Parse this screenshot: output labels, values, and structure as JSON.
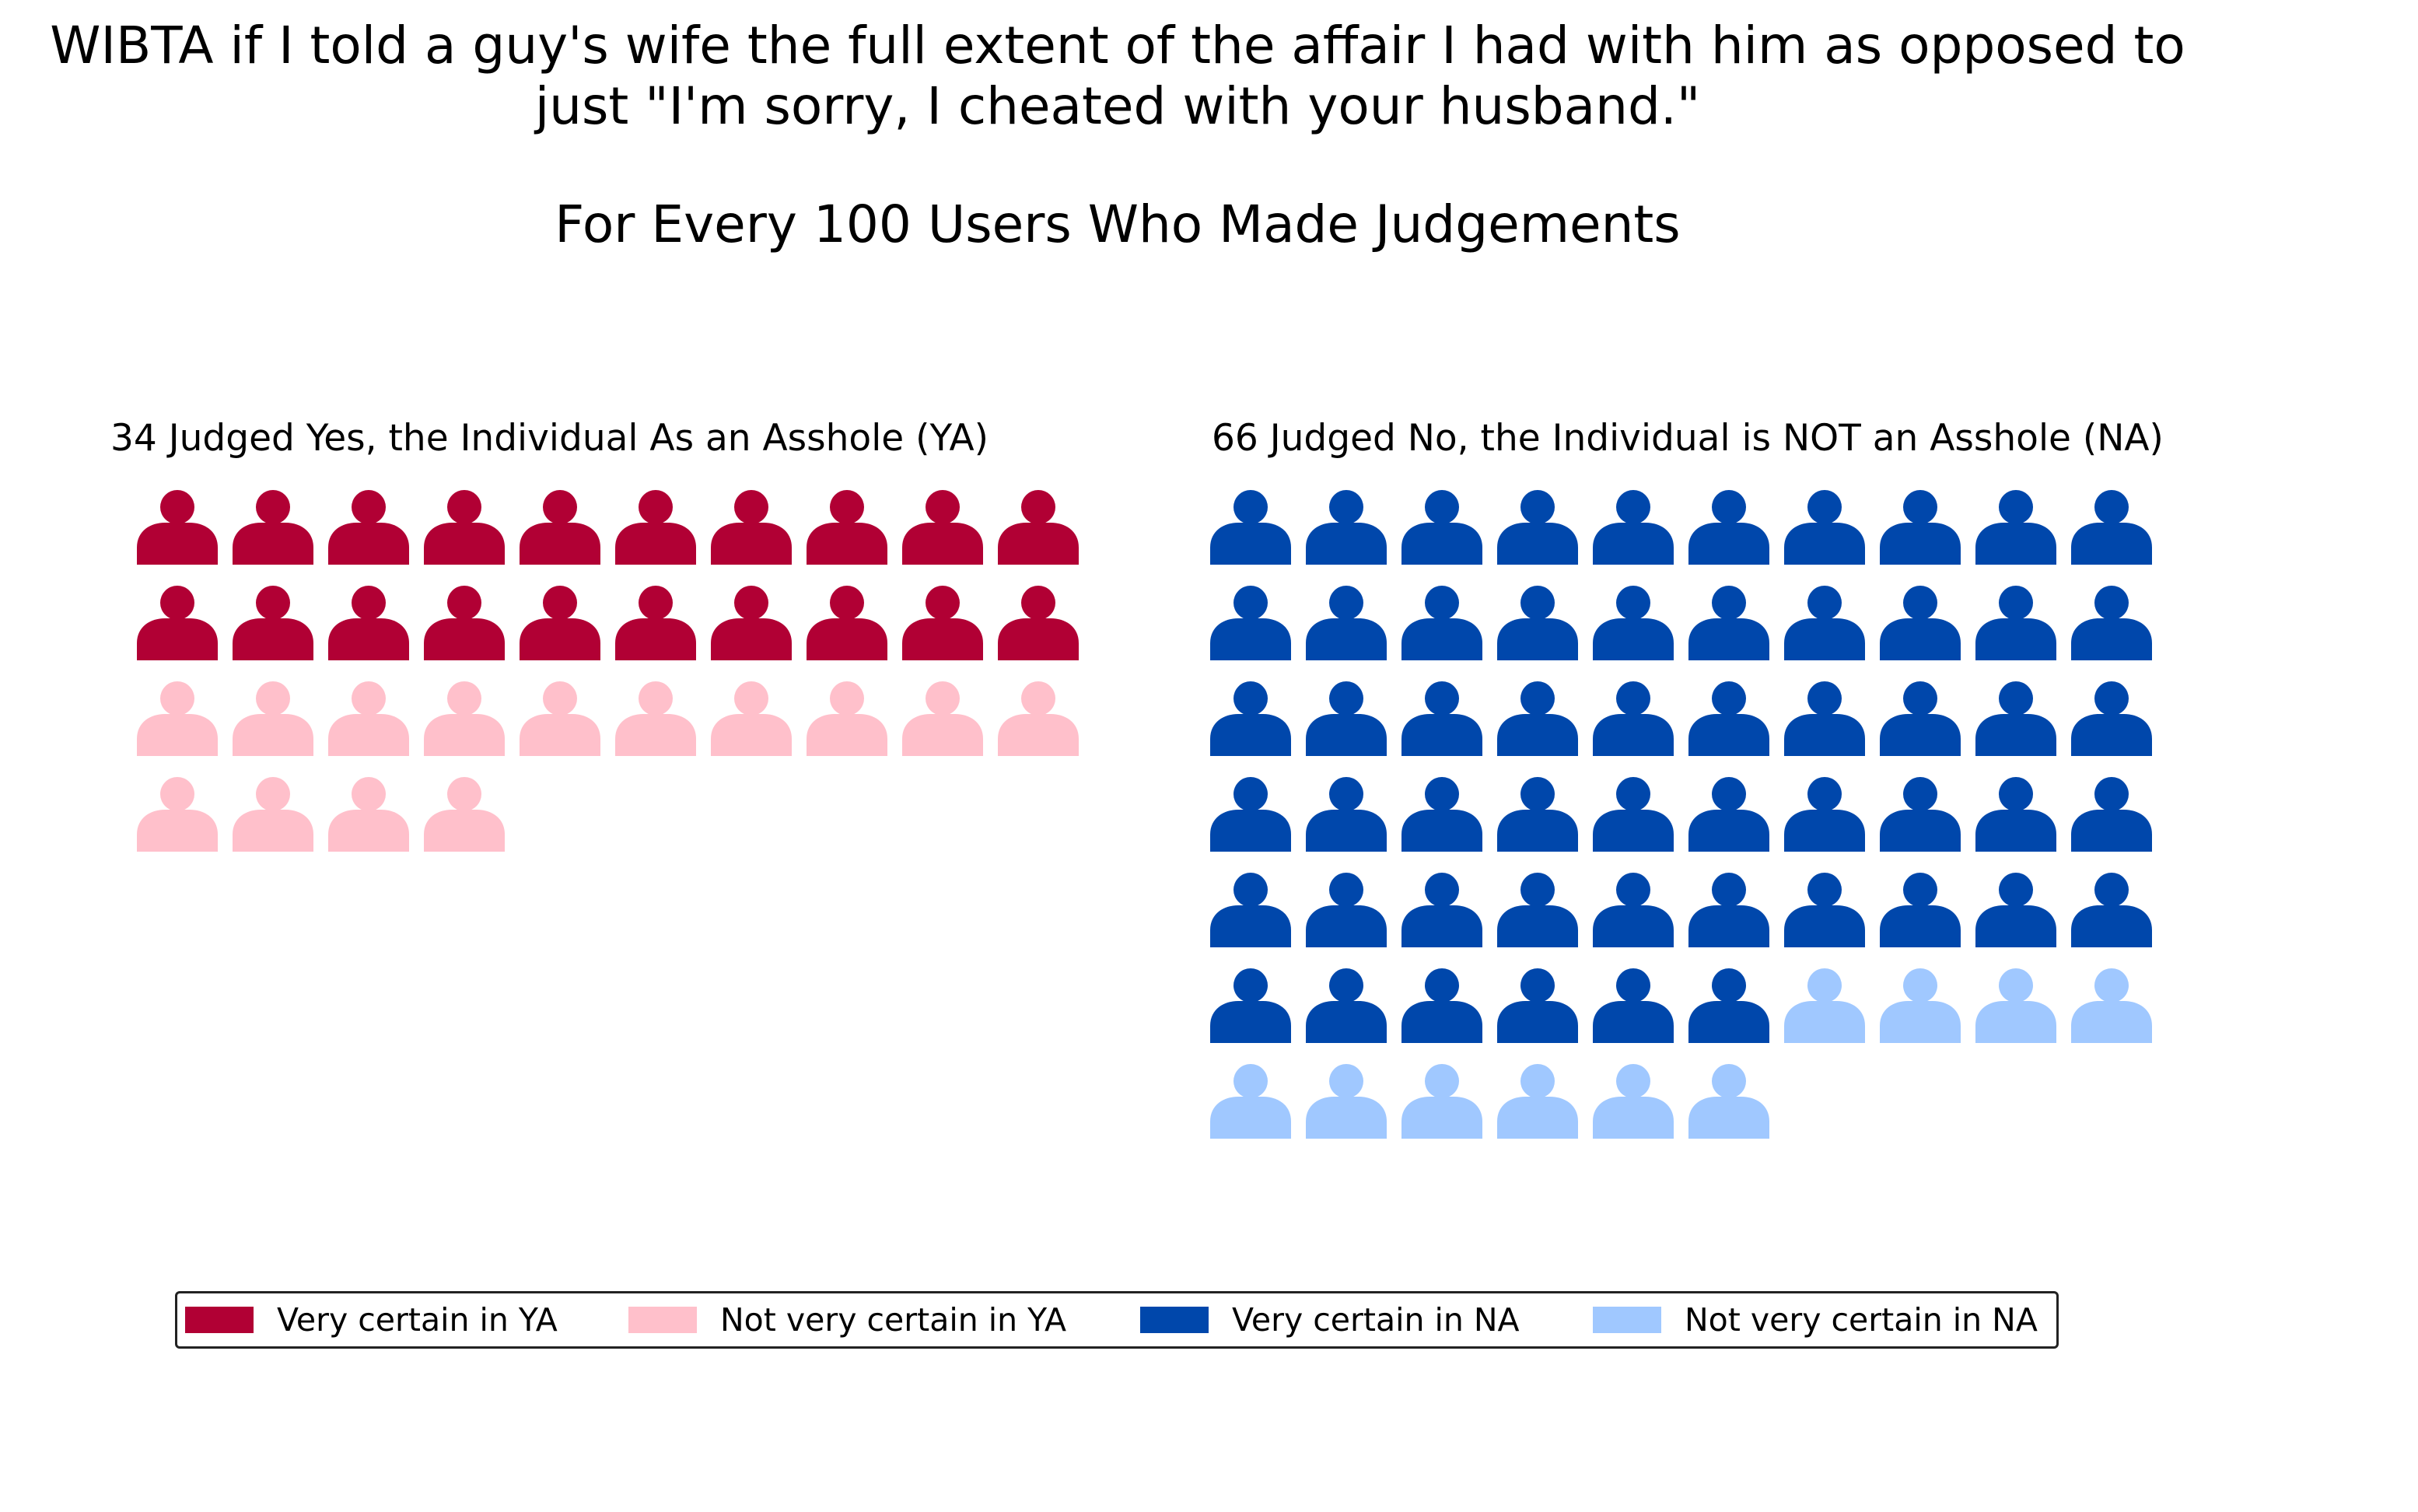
{
  "chart_data": {
    "type": "pictograph",
    "title_lines": [
      "WIBTA if I told a guy's wife the full extent of the affair I had with him as opposed to",
      "just \"I'm sorry, I cheated with your husband.\""
    ],
    "subtitle": "For Every 100 Users Who Made Judgements",
    "panels": [
      {
        "key": "ya",
        "title": "34 Judged Yes, the Individual As an Asshole (YA)",
        "total": 34,
        "groups": [
          {
            "label": "Very certain in YA",
            "count": 20,
            "color": "#b10034"
          },
          {
            "label": "Not very certain in YA",
            "count": 14,
            "color": "#ffc0cb"
          }
        ]
      },
      {
        "key": "na",
        "title": "66 Judged No, the Individual is NOT an Asshole (NA)",
        "total": 66,
        "groups": [
          {
            "label": "Very certain in NA",
            "count": 56,
            "color": "#0047ab"
          },
          {
            "label": "Not very certain in NA",
            "count": 10,
            "color": "#a0c8ff"
          }
        ]
      }
    ],
    "icons_per_row": 10,
    "icon": "person-icon",
    "legend": {
      "position": "bottom",
      "items": [
        {
          "label": "Very certain in YA",
          "color": "#b10034"
        },
        {
          "label": "Not very certain in YA",
          "color": "#ffc0cb"
        },
        {
          "label": "Very certain in NA",
          "color": "#0047ab"
        },
        {
          "label": "Not very certain in NA",
          "color": "#a0c8ff"
        }
      ]
    }
  }
}
